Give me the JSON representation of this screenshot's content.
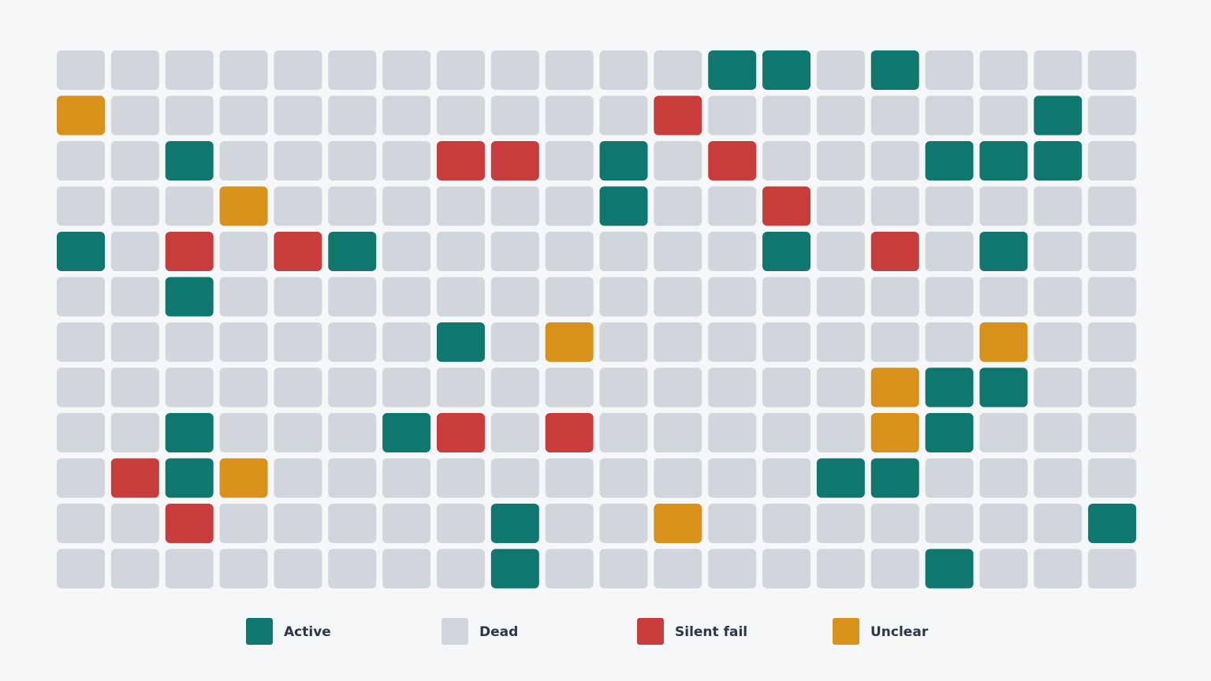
{
  "chart_data": {
    "type": "waffle",
    "series": [
      {
        "name": "Active",
        "color": "#0f776d"
      },
      {
        "name": "Dead",
        "color": "#d1d6dc"
      },
      {
        "name": "Silent fail",
        "color": "#c93c3c"
      },
      {
        "name": "Unclear",
        "color": "#d8911a"
      }
    ],
    "grid": [
      [
        1,
        1,
        1,
        1,
        1,
        1,
        1,
        1,
        1,
        1,
        1,
        1,
        0,
        0,
        1,
        0,
        1,
        1,
        1,
        1
      ],
      [
        3,
        1,
        1,
        1,
        1,
        1,
        1,
        1,
        1,
        1,
        1,
        2,
        1,
        1,
        1,
        1,
        1,
        1,
        0,
        1
      ],
      [
        1,
        1,
        0,
        1,
        1,
        1,
        1,
        2,
        2,
        1,
        0,
        1,
        2,
        1,
        1,
        1,
        0,
        0,
        0,
        1
      ],
      [
        1,
        1,
        1,
        3,
        1,
        1,
        1,
        1,
        1,
        1,
        0,
        1,
        1,
        2,
        1,
        1,
        1,
        1,
        1,
        1
      ],
      [
        0,
        1,
        2,
        1,
        2,
        0,
        1,
        1,
        1,
        1,
        1,
        1,
        1,
        0,
        1,
        2,
        1,
        0,
        1,
        1
      ],
      [
        1,
        1,
        0,
        1,
        1,
        1,
        1,
        1,
        1,
        1,
        1,
        1,
        1,
        1,
        1,
        1,
        1,
        1,
        1,
        1
      ],
      [
        1,
        1,
        1,
        1,
        1,
        1,
        1,
        0,
        1,
        3,
        1,
        1,
        1,
        1,
        1,
        1,
        1,
        3,
        1,
        1
      ],
      [
        1,
        1,
        1,
        1,
        1,
        1,
        1,
        1,
        1,
        1,
        1,
        1,
        1,
        1,
        1,
        3,
        0,
        0,
        1,
        1
      ],
      [
        1,
        1,
        0,
        1,
        1,
        1,
        0,
        2,
        1,
        2,
        1,
        1,
        1,
        1,
        1,
        3,
        0,
        1,
        1,
        1
      ],
      [
        1,
        2,
        0,
        3,
        1,
        1,
        1,
        1,
        1,
        1,
        1,
        1,
        1,
        1,
        0,
        0,
        1,
        1,
        1,
        1
      ],
      [
        1,
        1,
        2,
        1,
        1,
        1,
        1,
        1,
        0,
        1,
        1,
        3,
        1,
        1,
        1,
        1,
        1,
        1,
        1,
        0
      ],
      [
        1,
        1,
        1,
        1,
        1,
        1,
        1,
        1,
        0,
        1,
        1,
        1,
        1,
        1,
        1,
        1,
        0,
        1,
        1,
        1
      ]
    ]
  }
}
